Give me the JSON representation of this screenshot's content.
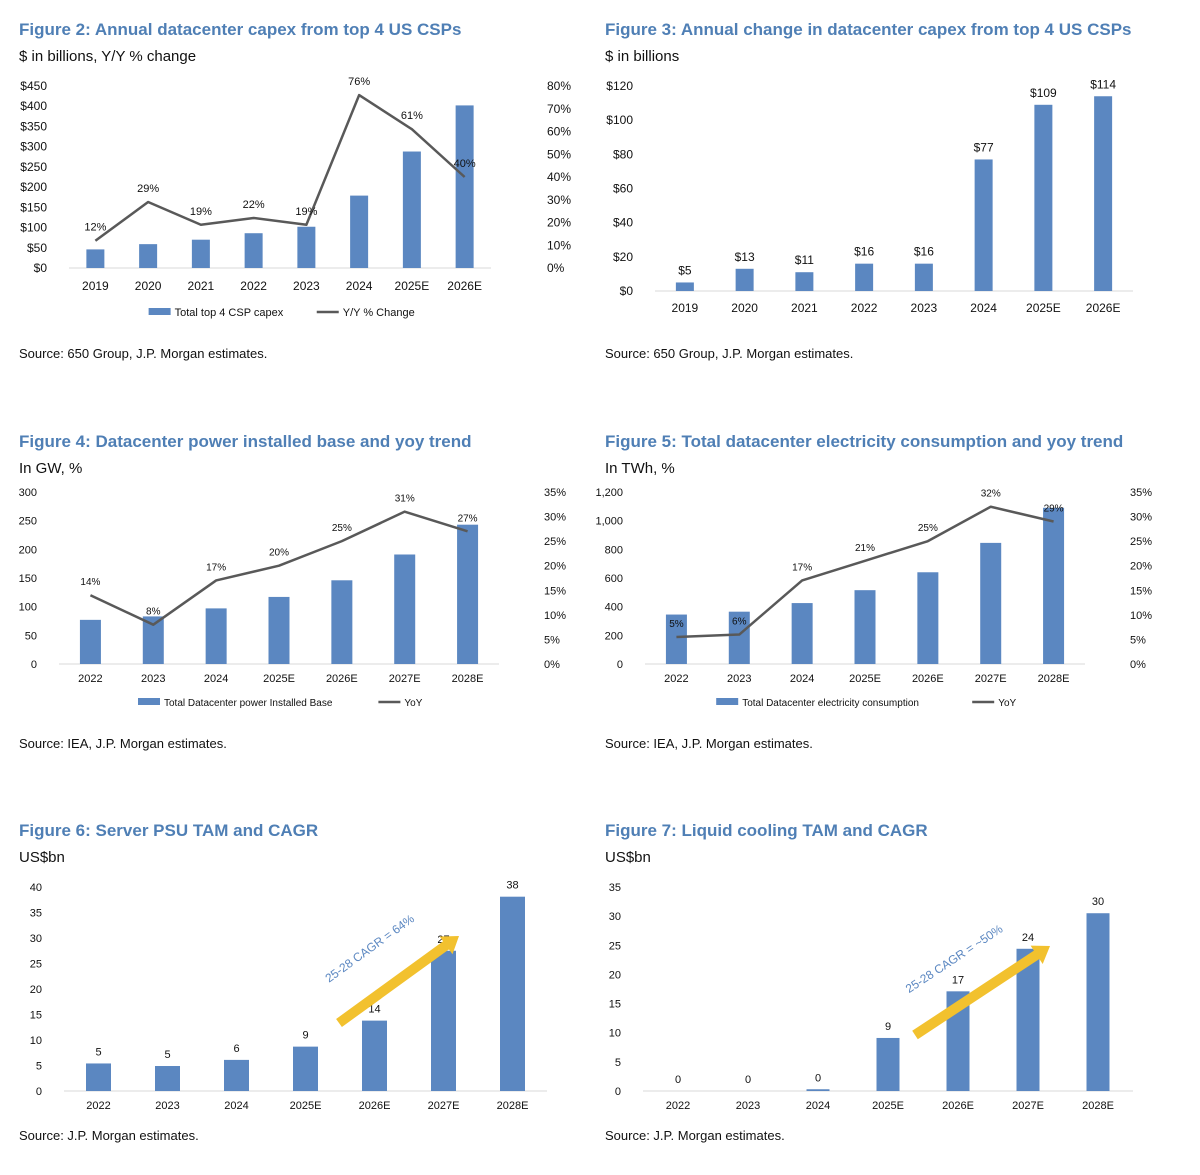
{
  "colors": {
    "bar": "#5b87c1",
    "line": "#595959",
    "title": "#4f7fb5",
    "arrow": "#f2c12e",
    "annotation": "#5b87c1"
  },
  "figures": [
    {
      "title": "Figure 2: Annual datacenter capex from top 4 US CSPs",
      "subtitle": "$ in billions, Y/Y % change",
      "source": "Source: 650 Group, J.P. Morgan estimates."
    },
    {
      "title": "Figure 3: Annual change in datacenter capex from top 4 US CSPs",
      "subtitle": "$ in billions",
      "source": "Source: 650 Group, J.P. Morgan estimates."
    },
    {
      "title": "Figure 4: Datacenter power installed base and yoy trend",
      "subtitle": "In GW, %",
      "source": "Source: IEA, J.P. Morgan estimates."
    },
    {
      "title": "Figure 5: Total datacenter electricity consumption and yoy trend",
      "subtitle": "In TWh, %",
      "source": "Source: IEA, J.P. Morgan estimates."
    },
    {
      "title": "Figure 6: Server PSU TAM and CAGR",
      "subtitle": "US$bn",
      "source": "Source: J.P. Morgan estimates."
    },
    {
      "title": "Figure 7: Liquid cooling TAM and CAGR",
      "subtitle": "US$bn",
      "source": "Source: J.P. Morgan estimates."
    }
  ],
  "chart_data": [
    {
      "type": "bar",
      "categories": [
        "2019",
        "2020",
        "2021",
        "2022",
        "2023",
        "2024",
        "2025E",
        "2026E"
      ],
      "series": [
        {
          "name": "Total top 4 CSP capex",
          "kind": "bar",
          "axis": "left",
          "values": [
            46,
            59,
            70,
            86,
            102,
            179,
            288,
            402
          ]
        },
        {
          "name": "Y/Y % Change",
          "kind": "line",
          "axis": "right",
          "values": [
            12,
            29,
            19,
            22,
            19,
            76,
            61,
            40
          ],
          "labels": [
            "12%",
            "29%",
            "19%",
            "22%",
            "19%",
            "76%",
            "61%",
            "40%"
          ]
        }
      ],
      "ylim": [
        0,
        450
      ],
      "yticks": [
        "$0",
        "$50",
        "$100",
        "$150",
        "$200",
        "$250",
        "$300",
        "$350",
        "$400",
        "$450"
      ],
      "y2lim": [
        0,
        80
      ],
      "y2ticks": [
        "0%",
        "10%",
        "20%",
        "30%",
        "40%",
        "50%",
        "60%",
        "70%",
        "80%"
      ],
      "legend": "bottom"
    },
    {
      "type": "bar",
      "categories": [
        "2019",
        "2020",
        "2021",
        "2022",
        "2023",
        "2024",
        "2025E",
        "2026E"
      ],
      "series": [
        {
          "kind": "bar",
          "axis": "left",
          "values": [
            5,
            13,
            11,
            16,
            16,
            77,
            109,
            114
          ],
          "labels": [
            "$5",
            "$13",
            "$11",
            "$16",
            "$16",
            "$77",
            "$109",
            "$114"
          ]
        }
      ],
      "ylim": [
        0,
        120
      ],
      "yticks": [
        "$0",
        "$20",
        "$40",
        "$60",
        "$80",
        "$100",
        "$120"
      ]
    },
    {
      "type": "bar",
      "categories": [
        "2022",
        "2023",
        "2024",
        "2025E",
        "2026E",
        "2027E",
        "2028E"
      ],
      "series": [
        {
          "name": "Total Datacenter power Installed Base",
          "kind": "bar",
          "axis": "left",
          "values": [
            77,
            83,
            97,
            117,
            146,
            191,
            243
          ]
        },
        {
          "name": "YoY",
          "kind": "line",
          "axis": "right",
          "values": [
            14,
            8,
            17,
            20,
            25,
            31,
            27
          ],
          "labels": [
            "14%",
            "8%",
            "17%",
            "20%",
            "25%",
            "31%",
            "27%"
          ]
        }
      ],
      "ylim": [
        0,
        300
      ],
      "yticks": [
        "0",
        "50",
        "100",
        "150",
        "200",
        "250",
        "300"
      ],
      "y2lim": [
        0,
        35
      ],
      "y2ticks": [
        "0%",
        "5%",
        "10%",
        "15%",
        "20%",
        "25%",
        "30%",
        "35%"
      ],
      "legend": "bottom"
    },
    {
      "type": "bar",
      "categories": [
        "2022",
        "2023",
        "2024",
        "2025E",
        "2026E",
        "2027E",
        "2028E"
      ],
      "series": [
        {
          "name": "Total Datacenter electricity consumption",
          "kind": "bar",
          "axis": "left",
          "values": [
            345,
            365,
            425,
            515,
            640,
            845,
            1090
          ]
        },
        {
          "name": "YoY",
          "kind": "line",
          "axis": "right",
          "values": [
            5.5,
            6,
            17,
            21,
            25,
            32,
            29
          ],
          "labels": [
            "5%",
            "6%",
            "17%",
            "21%",
            "25%",
            "32%",
            "29%"
          ]
        }
      ],
      "ylim": [
        0,
        1200
      ],
      "yticks": [
        "0",
        "200",
        "400",
        "600",
        "800",
        "1,000",
        "1,200"
      ],
      "y2lim": [
        0,
        35
      ],
      "y2ticks": [
        "0%",
        "5%",
        "10%",
        "15%",
        "20%",
        "25%",
        "30%",
        "35%"
      ],
      "legend": "bottom"
    },
    {
      "type": "bar",
      "categories": [
        "2022",
        "2023",
        "2024",
        "2025E",
        "2026E",
        "2027E",
        "2028E"
      ],
      "series": [
        {
          "kind": "bar",
          "axis": "left",
          "values": [
            5.4,
            4.9,
            6.1,
            8.7,
            13.8,
            27.5,
            38.1
          ],
          "labels": [
            "5",
            "5",
            "6",
            "9",
            "14",
            "27",
            "38"
          ]
        }
      ],
      "ylim": [
        0,
        40
      ],
      "yticks": [
        "0",
        "5",
        "10",
        "15",
        "20",
        "25",
        "30",
        "35",
        "40"
      ],
      "annotation": "25-28 CAGR = 64%"
    },
    {
      "type": "bar",
      "categories": [
        "2022",
        "2023",
        "2024",
        "2025E",
        "2026E",
        "2027E",
        "2028E"
      ],
      "series": [
        {
          "kind": "bar",
          "axis": "left",
          "values": [
            0,
            0,
            0.3,
            9.1,
            17.1,
            24.4,
            30.5
          ],
          "labels": [
            "0",
            "0",
            "0",
            "9",
            "17",
            "24",
            "30"
          ]
        }
      ],
      "ylim": [
        0,
        35
      ],
      "yticks": [
        "0",
        "5",
        "10",
        "15",
        "20",
        "25",
        "30",
        "35"
      ],
      "annotation": "25-28 CAGR = ~50%"
    }
  ]
}
